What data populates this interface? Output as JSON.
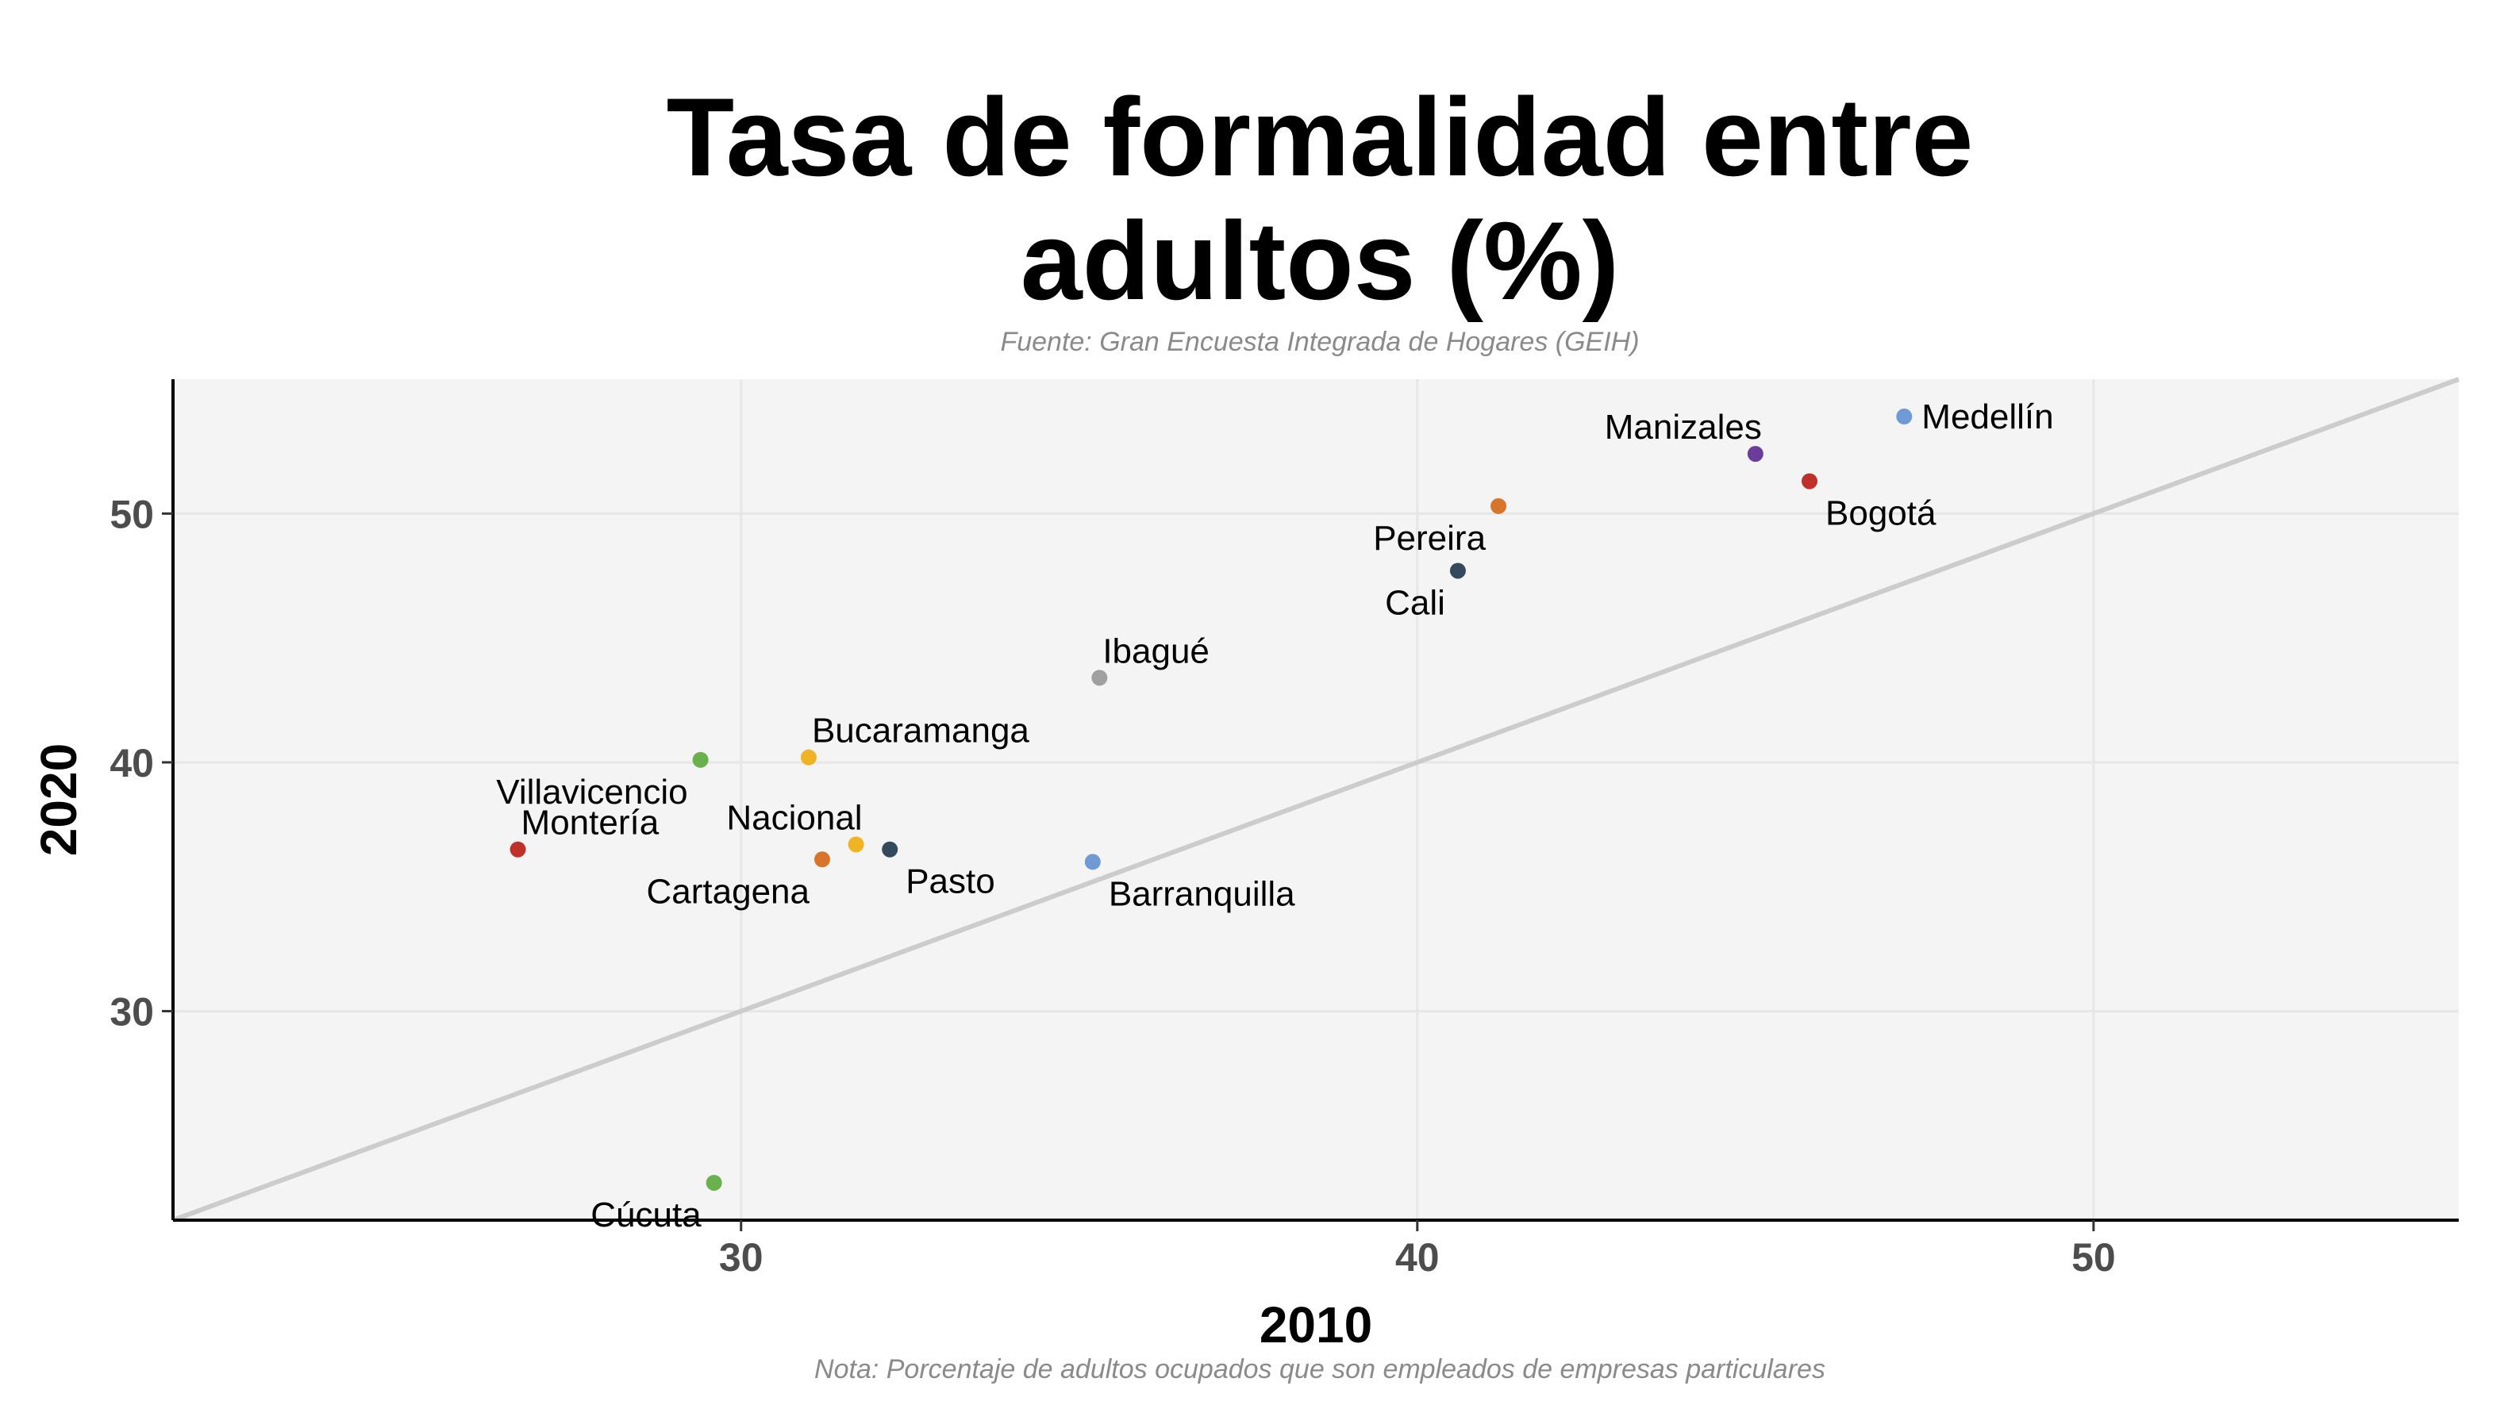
{
  "chart_data": {
    "type": "scatter",
    "title_lines": [
      "Tasa de formalidad entre",
      "adultos (%)"
    ],
    "subtitle": "Fuente: Gran Encuesta Integrada de Hogares (GEIH)",
    "caption": "Nota: Porcentaje de adultos ocupados que son empleados de empresas particulares",
    "xlabel": "2010",
    "ylabel": "2020",
    "xlim": [
      21.6,
      55.4
    ],
    "ylim": [
      21.6,
      55.4
    ],
    "xticks": [
      30,
      40,
      50
    ],
    "yticks": [
      30,
      40,
      50
    ],
    "grid": true,
    "reference_line": "y = x",
    "points": [
      {
        "label": "Medellín",
        "x": 47.2,
        "y": 53.9,
        "color": "#6f9ad6",
        "label_pos": "right"
      },
      {
        "label": "Manizales",
        "x": 45.0,
        "y": 52.4,
        "color": "#6a3d9a",
        "label_pos": "top-left"
      },
      {
        "label": "Bogotá",
        "x": 45.8,
        "y": 51.3,
        "color": "#c0302a",
        "label_pos": "bottom-right"
      },
      {
        "label": "Pereira",
        "x": 41.2,
        "y": 50.3,
        "color": "#d6752b",
        "label_pos": "bottom-left"
      },
      {
        "label": "Cali",
        "x": 40.6,
        "y": 47.7,
        "color": "#34495e",
        "label_pos": "bottom-left"
      },
      {
        "label": "Ibagué",
        "x": 35.3,
        "y": 43.4,
        "color": "#a0a0a0",
        "label_pos": "top-right"
      },
      {
        "label": "Bucaramanga",
        "x": 31.0,
        "y": 40.2,
        "color": "#f0b323",
        "label_pos": "top-right"
      },
      {
        "label": "Villavicencio",
        "x": 29.4,
        "y": 40.1,
        "color": "#6ab04c",
        "label_pos": "bottom-left"
      },
      {
        "label": "Montería",
        "x": 26.7,
        "y": 36.5,
        "color": "#c0302a",
        "label_pos": "top-right"
      },
      {
        "label": "Nacional",
        "x": 31.7,
        "y": 36.7,
        "color": "#f0b323",
        "label_pos": "top-left"
      },
      {
        "label": "Pasto",
        "x": 32.2,
        "y": 36.5,
        "color": "#34495e",
        "label_pos": "bottom-right"
      },
      {
        "label": "Cartagena",
        "x": 31.2,
        "y": 36.1,
        "color": "#d6752b",
        "label_pos": "bottom-left"
      },
      {
        "label": "Barranquilla",
        "x": 35.2,
        "y": 36.0,
        "color": "#6f9ad6",
        "label_pos": "bottom-right"
      },
      {
        "label": "Cúcuta",
        "x": 29.6,
        "y": 23.1,
        "color": "#6ab04c",
        "label_pos": "bottom-left"
      }
    ]
  }
}
